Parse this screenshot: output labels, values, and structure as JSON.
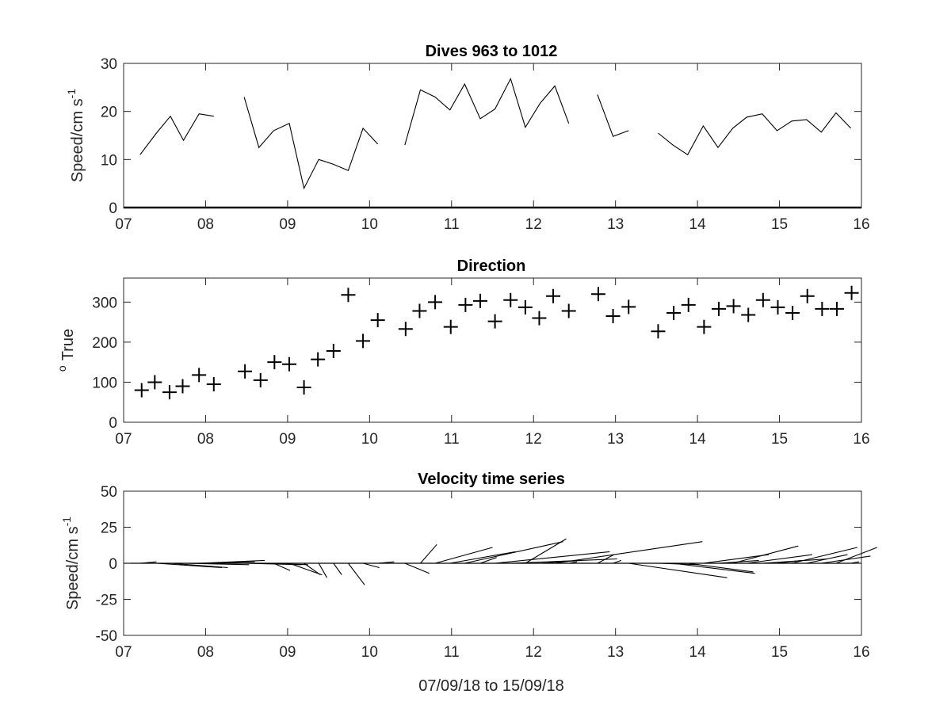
{
  "figure": {
    "xlabel": "07/09/18 to 15/09/18"
  },
  "chart_data": [
    {
      "type": "line",
      "title": "Dives 963 to 1012",
      "ylabel": "Speed/cm s",
      "ylabel_superscript": "-1",
      "xlim": [
        7,
        16
      ],
      "ylim": [
        0,
        30
      ],
      "x_ticks": [
        "07",
        "08",
        "09",
        "10",
        "11",
        "12",
        "13",
        "14",
        "15",
        "16"
      ],
      "y_ticks": [
        "0",
        "10",
        "20",
        "30"
      ],
      "grid": false,
      "baseline": 0,
      "segments": [
        [
          [
            7.2,
            11
          ],
          [
            7.4,
            15.5
          ],
          [
            7.57,
            19
          ],
          [
            7.73,
            14
          ],
          [
            7.92,
            19.5
          ],
          [
            8.1,
            19
          ]
        ],
        [
          [
            8.47,
            23
          ],
          [
            8.65,
            12.5
          ],
          [
            8.83,
            16
          ],
          [
            9.02,
            17.5
          ],
          [
            9.2,
            4
          ],
          [
            9.38,
            10
          ],
          [
            9.56,
            9
          ],
          [
            9.74,
            7.7
          ],
          [
            9.92,
            16.5
          ],
          [
            10.1,
            13.2
          ]
        ],
        [
          [
            10.43,
            13
          ],
          [
            10.62,
            24.5
          ],
          [
            10.8,
            23
          ],
          [
            10.98,
            20.3
          ],
          [
            11.16,
            25.7
          ],
          [
            11.35,
            18.5
          ],
          [
            11.53,
            20.5
          ],
          [
            11.72,
            26.8
          ],
          [
            11.9,
            16.7
          ],
          [
            12.08,
            21.7
          ],
          [
            12.26,
            25.3
          ],
          [
            12.43,
            17.5
          ]
        ],
        [
          [
            12.78,
            23.5
          ],
          [
            12.97,
            14.8
          ],
          [
            13.16,
            16
          ]
        ],
        [
          [
            13.52,
            15.5
          ],
          [
            13.7,
            13
          ],
          [
            13.88,
            11
          ],
          [
            14.07,
            17
          ],
          [
            14.25,
            12.5
          ],
          [
            14.43,
            16.5
          ],
          [
            14.6,
            18.8
          ],
          [
            14.79,
            19.5
          ],
          [
            14.97,
            16
          ],
          [
            15.15,
            18
          ],
          [
            15.33,
            18.3
          ],
          [
            15.51,
            15.7
          ],
          [
            15.69,
            19.7
          ],
          [
            15.87,
            16.5
          ]
        ]
      ]
    },
    {
      "type": "scatter",
      "title": "Direction",
      "ylabel": "True",
      "ylabel_prefix": "o",
      "xlim": [
        7,
        16
      ],
      "ylim": [
        0,
        360
      ],
      "x_ticks": [
        "07",
        "08",
        "09",
        "10",
        "11",
        "12",
        "13",
        "14",
        "15",
        "16"
      ],
      "y_ticks": [
        "0",
        "100",
        "200",
        "300"
      ],
      "grid": false,
      "marker": "+",
      "points": [
        [
          7.22,
          80
        ],
        [
          7.38,
          100
        ],
        [
          7.56,
          75
        ],
        [
          7.72,
          90
        ],
        [
          7.92,
          118
        ],
        [
          8.1,
          95
        ],
        [
          8.48,
          127
        ],
        [
          8.67,
          105
        ],
        [
          8.84,
          150
        ],
        [
          9.02,
          145
        ],
        [
          9.2,
          87
        ],
        [
          9.37,
          157
        ],
        [
          9.56,
          178
        ],
        [
          9.74,
          318
        ],
        [
          9.92,
          203
        ],
        [
          10.1,
          255
        ],
        [
          10.44,
          233
        ],
        [
          10.61,
          278
        ],
        [
          10.8,
          300
        ],
        [
          10.99,
          238
        ],
        [
          11.17,
          293
        ],
        [
          11.35,
          303
        ],
        [
          11.53,
          252
        ],
        [
          11.72,
          305
        ],
        [
          11.9,
          287
        ],
        [
          12.07,
          260
        ],
        [
          12.24,
          315
        ],
        [
          12.43,
          278
        ],
        [
          12.79,
          320
        ],
        [
          12.97,
          265
        ],
        [
          13.16,
          288
        ],
        [
          13.52,
          227
        ],
        [
          13.71,
          273
        ],
        [
          13.89,
          293
        ],
        [
          14.08,
          238
        ],
        [
          14.26,
          283
        ],
        [
          14.44,
          290
        ],
        [
          14.62,
          268
        ],
        [
          14.8,
          305
        ],
        [
          14.98,
          287
        ],
        [
          15.16,
          273
        ],
        [
          15.34,
          315
        ],
        [
          15.52,
          283
        ],
        [
          15.7,
          283
        ],
        [
          15.88,
          323
        ]
      ]
    },
    {
      "type": "quiver",
      "title": "Velocity time series",
      "ylabel": "Speed/cm s",
      "ylabel_superscript": "-1",
      "xlim": [
        7,
        16
      ],
      "ylim": [
        -50,
        50
      ],
      "x_ticks": [
        "07",
        "08",
        "09",
        "10",
        "11",
        "12",
        "13",
        "14",
        "15",
        "16"
      ],
      "y_ticks": [
        "50",
        "25",
        "0",
        "-25",
        "-50"
      ],
      "grid": false,
      "baseline": 0,
      "sticks": [
        [
          7.2,
          2,
          1
        ],
        [
          7.4,
          8,
          -3
        ],
        [
          7.57,
          7,
          -3
        ],
        [
          7.73,
          8,
          -1
        ],
        [
          7.92,
          8,
          2
        ],
        [
          8.1,
          5,
          1
        ],
        [
          8.47,
          7,
          -1
        ],
        [
          8.65,
          6,
          -1
        ],
        [
          8.83,
          2,
          -5
        ],
        [
          9.02,
          4,
          -8
        ],
        [
          9.2,
          2,
          -8
        ],
        [
          9.38,
          1,
          -10
        ],
        [
          9.56,
          1,
          -8
        ],
        [
          9.74,
          2,
          -15
        ],
        [
          9.92,
          2,
          -3
        ],
        [
          10.1,
          2,
          1
        ],
        [
          10.43,
          3,
          -7
        ],
        [
          10.62,
          2,
          13
        ],
        [
          10.8,
          7,
          11
        ],
        [
          10.98,
          8,
          8
        ],
        [
          11.16,
          12,
          15
        ],
        [
          11.35,
          2,
          4
        ],
        [
          11.53,
          14,
          8
        ],
        [
          11.72,
          13,
          3
        ],
        [
          11.9,
          5,
          17
        ],
        [
          12.08,
          5,
          2
        ],
        [
          12.26,
          18,
          15
        ],
        [
          12.43,
          1,
          1
        ],
        [
          12.78,
          2,
          6
        ],
        [
          12.97,
          1,
          2
        ],
        [
          13.16,
          12,
          -10
        ],
        [
          13.52,
          5,
          -1
        ],
        [
          13.7,
          10,
          -7
        ],
        [
          13.88,
          8,
          -6
        ],
        [
          14.07,
          8,
          6
        ],
        [
          14.25,
          5,
          2
        ],
        [
          14.43,
          8,
          12
        ],
        [
          14.6,
          8,
          6
        ],
        [
          14.79,
          8,
          3
        ],
        [
          14.97,
          3,
          2
        ],
        [
          15.15,
          8,
          11
        ],
        [
          15.33,
          5,
          6
        ],
        [
          15.51,
          6,
          5
        ],
        [
          15.69,
          5,
          11
        ],
        [
          15.87,
          1,
          1
        ]
      ]
    }
  ]
}
